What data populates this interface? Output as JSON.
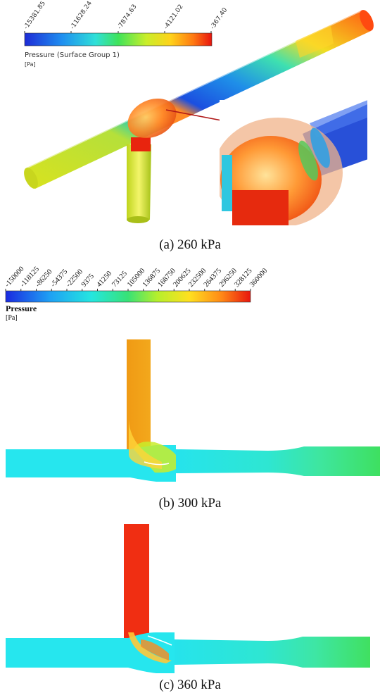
{
  "panels": [
    {
      "caption": "(a)  260 kPa",
      "legend": {
        "ticks": [
          "-15381.85",
          "-11628.24",
          "-7874.63",
          "-4121.02",
          "-367.40"
        ],
        "label": "Pressure (Surface Group 1)",
        "unit": "[Pa]"
      }
    },
    {
      "caption": "(b)  300 kPa",
      "legend": {
        "ticks": [
          "-150000",
          "-118125",
          "-86250",
          "-54375",
          "-22500",
          "9375",
          "41250",
          "73125",
          "105000",
          "136875",
          "168750",
          "200625",
          "232500",
          "264375",
          "296250",
          "328125",
          "360000"
        ],
        "label": "Pressure",
        "unit": "[Pa]"
      }
    },
    {
      "caption": "(c)  360 kPa"
    }
  ]
}
